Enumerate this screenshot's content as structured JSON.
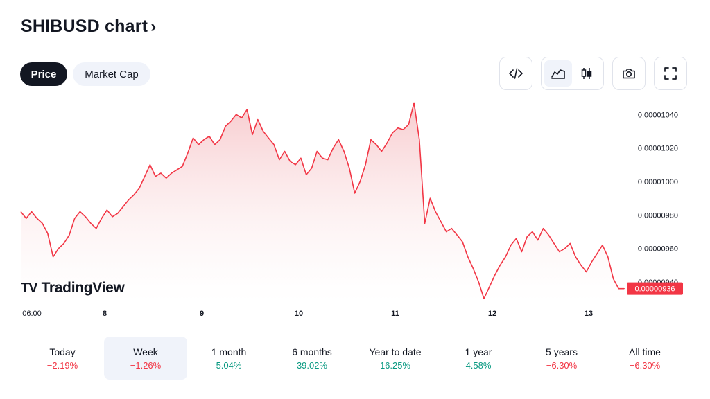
{
  "header": {
    "title": "SHIBUSD chart",
    "chevron": "›"
  },
  "tabs": [
    {
      "label": "Price",
      "active": true
    },
    {
      "label": "Market Cap",
      "active": false
    }
  ],
  "toolbar": {
    "icons": [
      "embed-code-icon",
      "area-chart-icon",
      "candles-icon",
      "camera-icon",
      "fullscreen-icon"
    ],
    "selected_chart_style": "area"
  },
  "logo": {
    "mark": "TV",
    "text": "TradingView"
  },
  "colors": {
    "line": "#f23645",
    "fill_top": "#f7c9cc",
    "fill_bottom": "#ffffff",
    "positive": "#089981",
    "negative": "#f23645"
  },
  "chart_data": {
    "type": "area",
    "symbol": "SHIBUSD",
    "x_ticks": [
      "06:00",
      "8",
      "9",
      "10",
      "11",
      "12",
      "13"
    ],
    "y_ticks": [
      "0.00000940",
      "0.00000960",
      "0.00000980",
      "0.00001000",
      "0.00001020",
      "0.00001040"
    ],
    "ylim": [
      9.28e-06,
      1.048e-05
    ],
    "last_price_label": "0.00000936",
    "grid": false,
    "series": [
      {
        "x": [
          0,
          1,
          2,
          3,
          4,
          5,
          6,
          7,
          8,
          9,
          10,
          11,
          12,
          13,
          14,
          15,
          16,
          17,
          18,
          19,
          20,
          21,
          22,
          23,
          24,
          25,
          26,
          27,
          28,
          29,
          30,
          31,
          32,
          33,
          34,
          35,
          36,
          37,
          38,
          39,
          40,
          41,
          42,
          43,
          44,
          45,
          46,
          47,
          48,
          49,
          50,
          51,
          52,
          53,
          54,
          55,
          56,
          57,
          58,
          59,
          60,
          61,
          62,
          63,
          64,
          65,
          66,
          67,
          68,
          69,
          70,
          71,
          72,
          73,
          74,
          75,
          76,
          77,
          78,
          79,
          80,
          81,
          82,
          83,
          84,
          85,
          86,
          87,
          88,
          89,
          90,
          91,
          92,
          93,
          94,
          95,
          96,
          97,
          98,
          99,
          100,
          101,
          102,
          103,
          104,
          105,
          106,
          107,
          108,
          109,
          110,
          111,
          112
        ],
        "values": [
          9.82e-06,
          9.78e-06,
          9.82e-06,
          9.78e-06,
          9.75e-06,
          9.69e-06,
          9.55e-06,
          9.6e-06,
          9.63e-06,
          9.68e-06,
          9.78e-06,
          9.82e-06,
          9.79e-06,
          9.75e-06,
          9.72e-06,
          9.78e-06,
          9.83e-06,
          9.79e-06,
          9.81e-06,
          9.85e-06,
          9.89e-06,
          9.92e-06,
          9.96e-06,
          1.003e-05,
          1.01e-05,
          1.003e-05,
          1.005e-05,
          1.002e-05,
          1.005e-05,
          1.007e-05,
          1.009e-05,
          1.017e-05,
          1.026e-05,
          1.022e-05,
          1.025e-05,
          1.027e-05,
          1.022e-05,
          1.025e-05,
          1.033e-05,
          1.036e-05,
          1.04e-05,
          1.038e-05,
          1.043e-05,
          1.028e-05,
          1.037e-05,
          1.03e-05,
          1.026e-05,
          1.022e-05,
          1.013e-05,
          1.018e-05,
          1.012e-05,
          1.01e-05,
          1.014e-05,
          1.004e-05,
          1.008e-05,
          1.018e-05,
          1.014e-05,
          1.013e-05,
          1.02e-05,
          1.025e-05,
          1.018e-05,
          1.008e-05,
          9.93e-06,
          1e-05,
          1.01e-05,
          1.025e-05,
          1.022e-05,
          1.018e-05,
          1.023e-05,
          1.029e-05,
          1.032e-05,
          1.031e-05,
          1.034e-05,
          1.047e-05,
          1.025e-05,
          9.75e-06,
          9.9e-06,
          9.82e-06,
          9.76e-06,
          9.7e-06,
          9.72e-06,
          9.68e-06,
          9.64e-06,
          9.55e-06,
          9.48e-06,
          9.4e-06,
          9.3e-06,
          9.37e-06,
          9.44e-06,
          9.5e-06,
          9.55e-06,
          9.62e-06,
          9.66e-06,
          9.58e-06,
          9.67e-06,
          9.7e-06,
          9.65e-06,
          9.72e-06,
          9.68e-06,
          9.63e-06,
          9.58e-06,
          9.6e-06,
          9.63e-06,
          9.55e-06,
          9.5e-06,
          9.46e-06,
          9.52e-06,
          9.57e-06,
          9.62e-06,
          9.55e-06,
          9.42e-06,
          9.36e-06,
          9.36e-06
        ]
      }
    ]
  },
  "periods": [
    {
      "label": "Today",
      "change": "−2.19%",
      "direction": "negative",
      "selected": false
    },
    {
      "label": "Week",
      "change": "−1.26%",
      "direction": "negative",
      "selected": true
    },
    {
      "label": "1 month",
      "change": "5.04%",
      "direction": "positive",
      "selected": false
    },
    {
      "label": "6 months",
      "change": "39.02%",
      "direction": "positive",
      "selected": false
    },
    {
      "label": "Year to date",
      "change": "16.25%",
      "direction": "positive",
      "selected": false
    },
    {
      "label": "1 year",
      "change": "4.58%",
      "direction": "positive",
      "selected": false
    },
    {
      "label": "5 years",
      "change": "−6.30%",
      "direction": "negative",
      "selected": false
    },
    {
      "label": "All time",
      "change": "−6.30%",
      "direction": "negative",
      "selected": false
    }
  ]
}
